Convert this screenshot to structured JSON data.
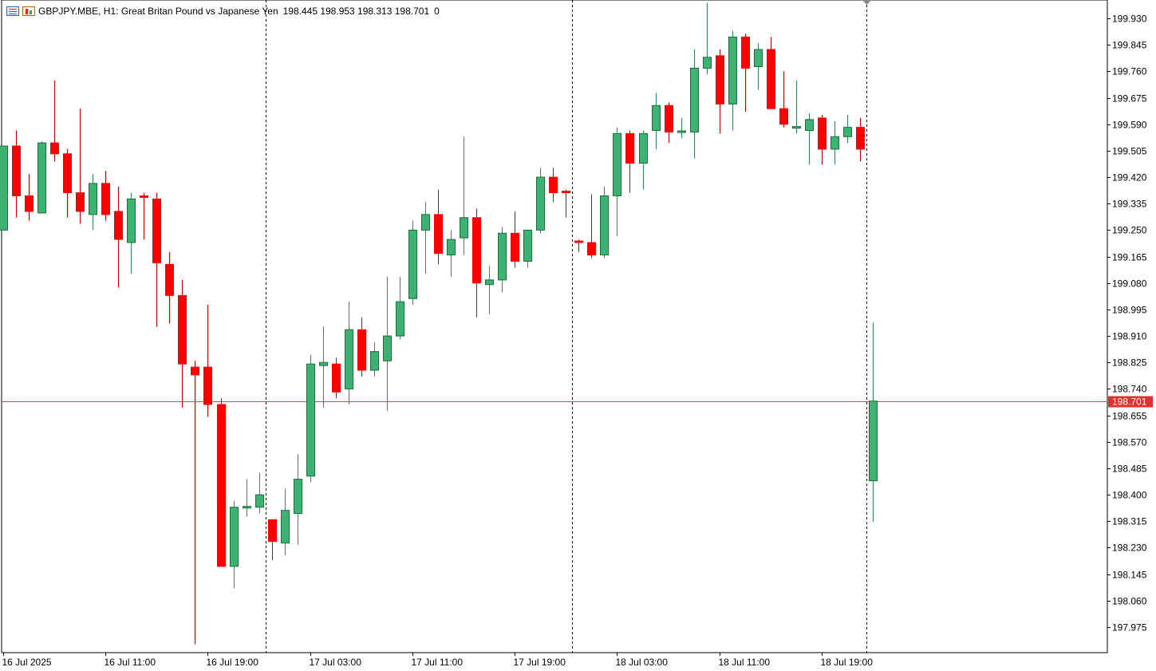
{
  "header": {
    "symbol_line": "GBPJPY.MBE, H1:  Great Britan Pound vs Japanese Yen",
    "ohlc": "198.445 198.953 198.313 198.701",
    "extra": "0",
    "icons": [
      "list-icon",
      "compare-icon"
    ]
  },
  "chart_data": {
    "type": "candlestick",
    "title": "GBPJPY.MBE, H1:  Great Britan Pound vs Japanese Yen",
    "ylim": [
      197.9,
      200.0
    ],
    "y_ticks": [
      "199.930",
      "199.845",
      "199.760",
      "199.675",
      "199.590",
      "199.505",
      "199.420",
      "199.335",
      "199.250",
      "199.165",
      "199.080",
      "198.995",
      "198.910",
      "198.825",
      "198.740",
      "198.655",
      "198.570",
      "198.485",
      "198.400",
      "198.315",
      "198.230",
      "198.145",
      "198.060",
      "197.975"
    ],
    "x_ticks": [
      {
        "label": "16 Jul 2025",
        "index": 0
      },
      {
        "label": "16 Jul 11:00",
        "index": 8
      },
      {
        "label": "16 Jul 19:00",
        "index": 16
      },
      {
        "label": "17 Jul 03:00",
        "index": 24
      },
      {
        "label": "17 Jul 11:00",
        "index": 32
      },
      {
        "label": "17 Jul 19:00",
        "index": 40
      },
      {
        "label": "18 Jul 03:00",
        "index": 48
      },
      {
        "label": "18 Jul 11:00",
        "index": 56
      },
      {
        "label": "18 Jul 19:00",
        "index": 64
      }
    ],
    "day_separators": [
      20.5,
      44.5,
      67.5
    ],
    "current_price": "198.701",
    "colors": {
      "up": "#3cb371",
      "down": "#ff0000",
      "up_border": "#1e6b3c",
      "down_border": "#ff0000",
      "current_line": "#e04040",
      "price_label_bg": "#e03030"
    },
    "candles": [
      {
        "o": 199.25,
        "h": 199.52,
        "l": 199.25,
        "c": 199.52
      },
      {
        "o": 199.52,
        "h": 199.57,
        "l": 199.29,
        "c": 199.36
      },
      {
        "o": 199.36,
        "h": 199.43,
        "l": 199.28,
        "c": 199.31
      },
      {
        "o": 199.305,
        "h": 199.535,
        "l": 199.305,
        "c": 199.53
      },
      {
        "o": 199.53,
        "h": 199.73,
        "l": 199.47,
        "c": 199.495
      },
      {
        "o": 199.495,
        "h": 199.51,
        "l": 199.29,
        "c": 199.37
      },
      {
        "o": 199.37,
        "h": 199.64,
        "l": 199.27,
        "c": 199.31
      },
      {
        "o": 199.3,
        "h": 199.43,
        "l": 199.25,
        "c": 199.4
      },
      {
        "o": 199.4,
        "h": 199.44,
        "l": 199.28,
        "c": 199.3
      },
      {
        "o": 199.31,
        "h": 199.39,
        "l": 199.065,
        "c": 199.22
      },
      {
        "o": 199.21,
        "h": 199.37,
        "l": 199.11,
        "c": 199.35
      },
      {
        "o": 199.36,
        "h": 199.37,
        "l": 199.22,
        "c": 199.355
      },
      {
        "o": 199.35,
        "h": 199.37,
        "l": 198.94,
        "c": 199.145
      },
      {
        "o": 199.14,
        "h": 199.18,
        "l": 198.95,
        "c": 199.04
      },
      {
        "o": 199.04,
        "h": 199.09,
        "l": 198.68,
        "c": 198.82
      },
      {
        "o": 198.81,
        "h": 198.83,
        "l": 197.92,
        "c": 198.785
      },
      {
        "o": 198.81,
        "h": 199.01,
        "l": 198.65,
        "c": 198.69
      },
      {
        "o": 198.69,
        "h": 198.71,
        "l": 198.17,
        "c": 198.17
      },
      {
        "o": 198.17,
        "h": 198.38,
        "l": 198.1,
        "c": 198.36
      },
      {
        "o": 198.36,
        "h": 198.45,
        "l": 198.33,
        "c": 198.36
      },
      {
        "o": 198.36,
        "h": 198.47,
        "l": 198.34,
        "c": 198.4
      },
      {
        "o": 198.32,
        "h": 198.32,
        "l": 198.19,
        "c": 198.25
      },
      {
        "o": 198.245,
        "h": 198.42,
        "l": 198.205,
        "c": 198.35
      },
      {
        "o": 198.34,
        "h": 198.53,
        "l": 198.24,
        "c": 198.45
      },
      {
        "o": 198.46,
        "h": 198.85,
        "l": 198.44,
        "c": 198.82
      },
      {
        "o": 198.815,
        "h": 198.94,
        "l": 198.68,
        "c": 198.825
      },
      {
        "o": 198.82,
        "h": 198.84,
        "l": 198.71,
        "c": 198.73
      },
      {
        "o": 198.74,
        "h": 199.02,
        "l": 198.69,
        "c": 198.93
      },
      {
        "o": 198.93,
        "h": 198.97,
        "l": 198.78,
        "c": 198.8
      },
      {
        "o": 198.8,
        "h": 198.89,
        "l": 198.78,
        "c": 198.86
      },
      {
        "o": 198.83,
        "h": 199.1,
        "l": 198.67,
        "c": 198.91
      },
      {
        "o": 198.91,
        "h": 199.1,
        "l": 198.9,
        "c": 199.02
      },
      {
        "o": 199.03,
        "h": 199.28,
        "l": 199.01,
        "c": 199.25
      },
      {
        "o": 199.25,
        "h": 199.34,
        "l": 199.11,
        "c": 199.3
      },
      {
        "o": 199.3,
        "h": 199.38,
        "l": 199.14,
        "c": 199.175
      },
      {
        "o": 199.17,
        "h": 199.25,
        "l": 199.1,
        "c": 199.22
      },
      {
        "o": 199.225,
        "h": 199.55,
        "l": 199.17,
        "c": 199.29
      },
      {
        "o": 199.29,
        "h": 199.32,
        "l": 198.97,
        "c": 199.08
      },
      {
        "o": 199.075,
        "h": 199.135,
        "l": 198.98,
        "c": 199.09
      },
      {
        "o": 199.09,
        "h": 199.26,
        "l": 199.05,
        "c": 199.24
      },
      {
        "o": 199.24,
        "h": 199.31,
        "l": 199.13,
        "c": 199.15
      },
      {
        "o": 199.15,
        "h": 199.25,
        "l": 199.13,
        "c": 199.25
      },
      {
        "o": 199.25,
        "h": 199.45,
        "l": 199.24,
        "c": 199.42
      },
      {
        "o": 199.42,
        "h": 199.45,
        "l": 199.34,
        "c": 199.37
      },
      {
        "o": 199.375,
        "h": 199.38,
        "l": 199.29,
        "c": 199.37
      },
      {
        "o": 199.215,
        "h": 199.22,
        "l": 199.18,
        "c": 199.21
      },
      {
        "o": 199.21,
        "h": 199.365,
        "l": 199.16,
        "c": 199.17
      },
      {
        "o": 199.17,
        "h": 199.39,
        "l": 199.16,
        "c": 199.36
      },
      {
        "o": 199.36,
        "h": 199.58,
        "l": 199.23,
        "c": 199.56
      },
      {
        "o": 199.56,
        "h": 199.57,
        "l": 199.37,
        "c": 199.465
      },
      {
        "o": 199.465,
        "h": 199.57,
        "l": 199.38,
        "c": 199.56
      },
      {
        "o": 199.57,
        "h": 199.69,
        "l": 199.51,
        "c": 199.65
      },
      {
        "o": 199.65,
        "h": 199.66,
        "l": 199.53,
        "c": 199.565
      },
      {
        "o": 199.565,
        "h": 199.61,
        "l": 199.545,
        "c": 199.567
      },
      {
        "o": 199.565,
        "h": 199.83,
        "l": 199.48,
        "c": 199.77
      },
      {
        "o": 199.77,
        "h": 199.98,
        "l": 199.75,
        "c": 199.805
      },
      {
        "o": 199.81,
        "h": 199.83,
        "l": 199.56,
        "c": 199.655
      },
      {
        "o": 199.655,
        "h": 199.89,
        "l": 199.57,
        "c": 199.87
      },
      {
        "o": 199.87,
        "h": 199.88,
        "l": 199.63,
        "c": 199.77
      },
      {
        "o": 199.775,
        "h": 199.85,
        "l": 199.7,
        "c": 199.83
      },
      {
        "o": 199.83,
        "h": 199.87,
        "l": 199.65,
        "c": 199.64
      },
      {
        "o": 199.64,
        "h": 199.76,
        "l": 199.58,
        "c": 199.59
      },
      {
        "o": 199.58,
        "h": 199.73,
        "l": 199.56,
        "c": 199.58
      },
      {
        "o": 199.57,
        "h": 199.625,
        "l": 199.46,
        "c": 199.605
      },
      {
        "o": 199.61,
        "h": 199.62,
        "l": 199.46,
        "c": 199.51
      },
      {
        "o": 199.51,
        "h": 199.6,
        "l": 199.46,
        "c": 199.55
      },
      {
        "o": 199.55,
        "h": 199.62,
        "l": 199.53,
        "c": 199.58
      },
      {
        "o": 199.58,
        "h": 199.61,
        "l": 199.47,
        "c": 199.51
      },
      {
        "o": 198.445,
        "h": 198.953,
        "l": 198.313,
        "c": 198.701
      }
    ]
  }
}
